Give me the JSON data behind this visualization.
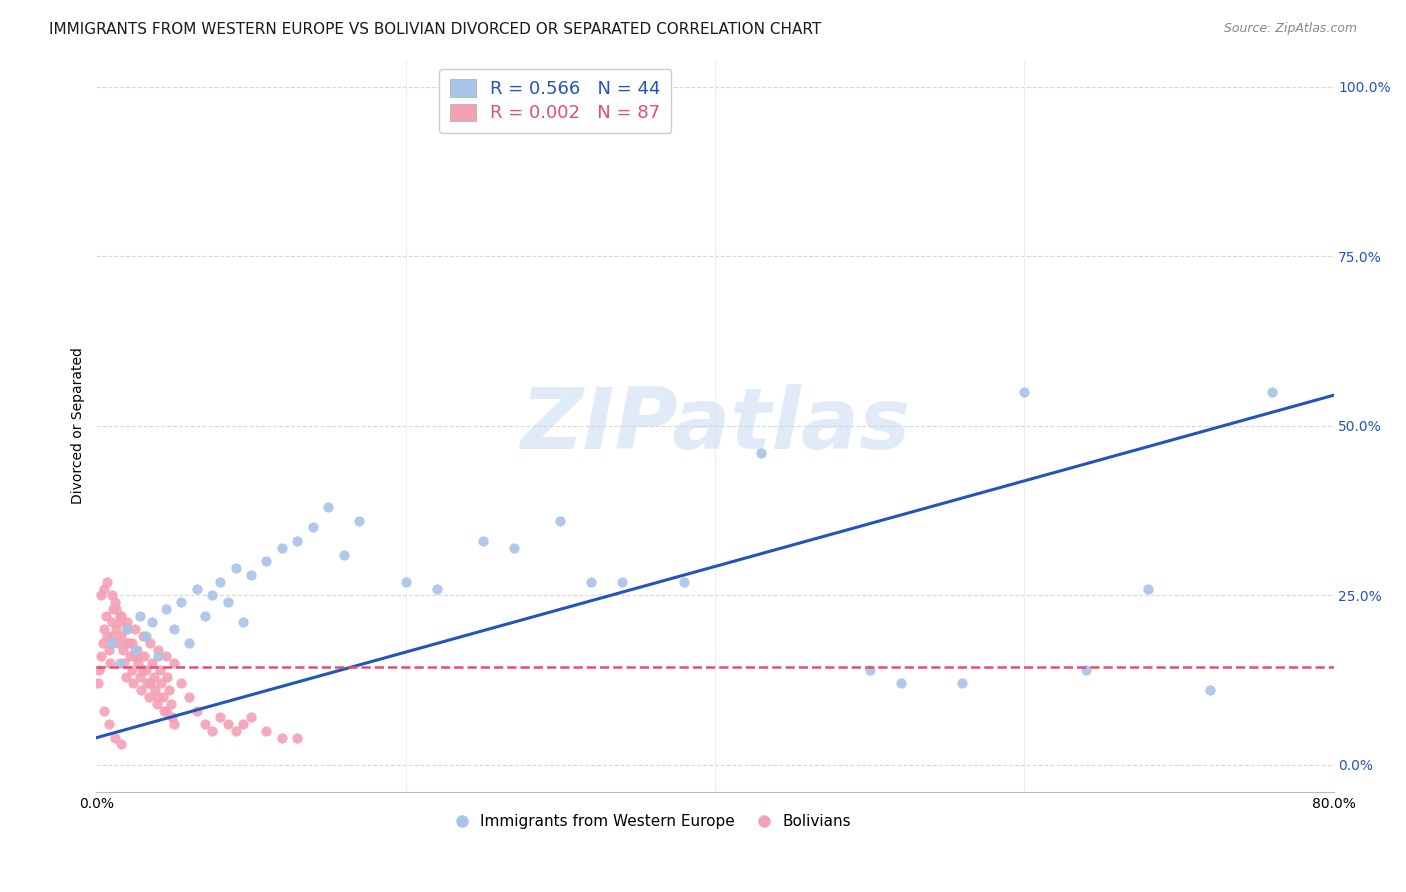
{
  "title": "IMMIGRANTS FROM WESTERN EUROPE VS BOLIVIAN DIVORCED OR SEPARATED CORRELATION CHART",
  "source": "Source: ZipAtlas.com",
  "ylabel": "Divorced or Separated",
  "yticks": [
    "0.0%",
    "25.0%",
    "50.0%",
    "75.0%",
    "100.0%"
  ],
  "ytick_vals": [
    0.0,
    0.25,
    0.5,
    0.75,
    1.0
  ],
  "legend_blue_R": "R = 0.566",
  "legend_blue_N": "N = 44",
  "legend_pink_R": "R = 0.002",
  "legend_pink_N": "N = 87",
  "legend_label_blue": "Immigrants from Western Europe",
  "legend_label_pink": "Bolivians",
  "blue_color": "#a8c4e8",
  "pink_color": "#f4a0b5",
  "trendline_blue_color": "#2255bb",
  "trendline_pink_color": "#e05070",
  "background_color": "#ffffff",
  "blue_scatter_x": [
    0.01,
    0.015,
    0.02,
    0.025,
    0.028,
    0.032,
    0.036,
    0.04,
    0.045,
    0.05,
    0.055,
    0.06,
    0.065,
    0.07,
    0.075,
    0.08,
    0.085,
    0.09,
    0.095,
    0.1,
    0.11,
    0.12,
    0.13,
    0.14,
    0.15,
    0.16,
    0.17,
    0.2,
    0.22,
    0.25,
    0.27,
    0.3,
    0.32,
    0.34,
    0.38,
    0.43,
    0.5,
    0.52,
    0.56,
    0.6,
    0.64,
    0.68,
    0.72,
    0.76
  ],
  "blue_scatter_y": [
    0.18,
    0.15,
    0.2,
    0.17,
    0.22,
    0.19,
    0.21,
    0.16,
    0.23,
    0.2,
    0.24,
    0.18,
    0.26,
    0.22,
    0.25,
    0.27,
    0.24,
    0.29,
    0.21,
    0.28,
    0.3,
    0.32,
    0.33,
    0.35,
    0.38,
    0.31,
    0.36,
    0.27,
    0.26,
    0.33,
    0.32,
    0.36,
    0.27,
    0.27,
    0.27,
    0.46,
    0.14,
    0.12,
    0.12,
    0.55,
    0.14,
    0.26,
    0.11,
    0.55
  ],
  "pink_scatter_x": [
    0.001,
    0.002,
    0.003,
    0.004,
    0.005,
    0.006,
    0.007,
    0.008,
    0.009,
    0.01,
    0.011,
    0.012,
    0.013,
    0.014,
    0.015,
    0.016,
    0.017,
    0.018,
    0.019,
    0.02,
    0.021,
    0.022,
    0.023,
    0.024,
    0.025,
    0.026,
    0.027,
    0.028,
    0.029,
    0.03,
    0.031,
    0.032,
    0.033,
    0.034,
    0.035,
    0.036,
    0.037,
    0.038,
    0.039,
    0.04,
    0.041,
    0.042,
    0.043,
    0.044,
    0.045,
    0.046,
    0.047,
    0.048,
    0.049,
    0.05,
    0.055,
    0.06,
    0.065,
    0.07,
    0.075,
    0.08,
    0.085,
    0.09,
    0.095,
    0.1,
    0.11,
    0.12,
    0.13,
    0.003,
    0.005,
    0.007,
    0.01,
    0.013,
    0.016,
    0.02,
    0.023,
    0.026,
    0.03,
    0.035,
    0.04,
    0.045,
    0.05,
    0.01,
    0.015,
    0.02,
    0.025,
    0.03,
    0.035,
    0.005,
    0.008,
    0.012,
    0.016
  ],
  "pink_scatter_y": [
    0.12,
    0.14,
    0.16,
    0.18,
    0.2,
    0.22,
    0.19,
    0.17,
    0.15,
    0.21,
    0.23,
    0.24,
    0.2,
    0.18,
    0.22,
    0.19,
    0.17,
    0.15,
    0.13,
    0.21,
    0.18,
    0.16,
    0.14,
    0.12,
    0.2,
    0.17,
    0.15,
    0.13,
    0.11,
    0.19,
    0.16,
    0.14,
    0.12,
    0.1,
    0.18,
    0.15,
    0.13,
    0.11,
    0.09,
    0.17,
    0.14,
    0.12,
    0.1,
    0.08,
    0.16,
    0.13,
    0.11,
    0.09,
    0.07,
    0.15,
    0.12,
    0.1,
    0.08,
    0.06,
    0.05,
    0.07,
    0.06,
    0.05,
    0.06,
    0.07,
    0.05,
    0.04,
    0.04,
    0.25,
    0.26,
    0.27,
    0.25,
    0.23,
    0.22,
    0.2,
    0.18,
    0.16,
    0.14,
    0.12,
    0.1,
    0.08,
    0.06,
    0.19,
    0.21,
    0.18,
    0.16,
    0.14,
    0.12,
    0.08,
    0.06,
    0.04,
    0.03
  ],
  "xlim": [
    0.0,
    0.8
  ],
  "ylim": [
    -0.04,
    1.04
  ],
  "grid_color": "#d8d8d8",
  "watermark_text": "ZIPatlas",
  "title_fontsize": 11,
  "axis_label_fontsize": 10,
  "tick_label_fontsize": 10,
  "blue_trend_x0": 0.0,
  "blue_trend_y0": 0.04,
  "blue_trend_x1": 0.8,
  "blue_trend_y1": 0.545,
  "pink_trend_x0": 0.0,
  "pink_trend_y0": 0.145,
  "pink_trend_x1": 0.8,
  "pink_trend_y1": 0.145
}
